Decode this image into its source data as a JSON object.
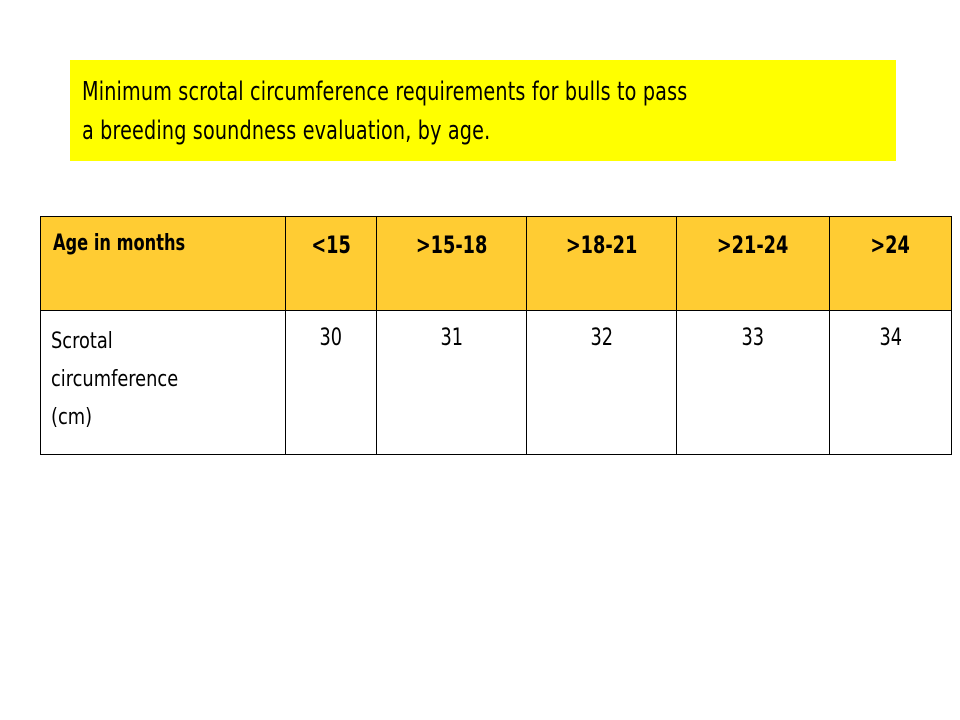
{
  "title": {
    "line1": "Minimum scrotal circumference requirements for bulls to pass",
    "line2": "a breeding soundness evaluation, by age."
  },
  "colors": {
    "title_background": "#ffff00",
    "header_background": "#ffcc33"
  },
  "table": {
    "header": [
      "Age in months",
      "<15",
      ">15-18",
      ">18-21",
      ">21-24",
      ">24"
    ],
    "row_label_lines": [
      "Scrotal",
      "circumference",
      "(cm)"
    ],
    "values": [
      "30",
      "31",
      "32",
      "33",
      "34"
    ]
  }
}
